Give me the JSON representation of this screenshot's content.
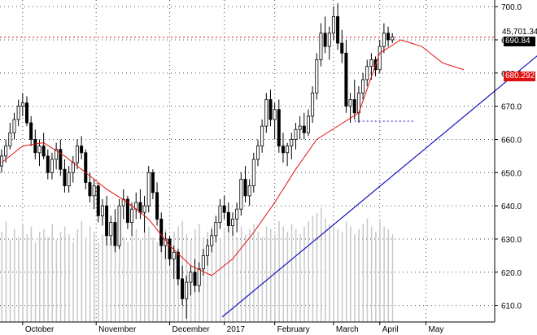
{
  "chart_data": {
    "type": "candlestick",
    "title": "",
    "xlabel": "",
    "ylabel": "",
    "ylim": [
      605,
      702
    ],
    "x_tick_labels": [
      "October",
      "November",
      "December",
      "2017",
      "February",
      "March",
      "April",
      "May"
    ],
    "y_tick_labels": [
      "610.0",
      "620.0",
      "630.0",
      "640.0",
      "650.0",
      "660.0",
      "670.0",
      "680.0",
      "690.0",
      "700.0"
    ],
    "y_ticks": [
      610,
      620,
      630,
      640,
      650,
      660,
      670,
      680,
      690,
      700
    ],
    "grid": true,
    "annotations": {
      "volume_label": "45,701.34",
      "last_price_label": "690.84",
      "last_price_value": 690.84,
      "moving_average_label": "680.292",
      "moving_average_value": 680.292,
      "horizontal_level_red": 690.8,
      "horizontal_level_blue": 665.5,
      "trendline_start": {
        "day": 105,
        "value": 606.5
      },
      "trendline_end": {
        "day": 287,
        "value": 702
      }
    },
    "colors": {
      "up_candle": "#ffffff",
      "down_candle": "#000000",
      "candle_outline": "#000000",
      "moving_average": "#e01010",
      "trendline": "#1010c0",
      "red_level": "#e01010",
      "blue_level": "#1010c0",
      "volume": "#c8c8c8",
      "price_tag": "#000000",
      "ma_tag": "#e01010"
    },
    "candles": [
      [
        652,
        657,
        650,
        655
      ],
      [
        655,
        660,
        653,
        658
      ],
      [
        658,
        665,
        657,
        662
      ],
      [
        662,
        668,
        660,
        666
      ],
      [
        666,
        672,
        664,
        670
      ],
      [
        670,
        674,
        667,
        671
      ],
      [
        671,
        673,
        664,
        665
      ],
      [
        665,
        667,
        658,
        660
      ],
      [
        660,
        663,
        654,
        656
      ],
      [
        656,
        660,
        652,
        658
      ],
      [
        658,
        662,
        654,
        655
      ],
      [
        655,
        657,
        648,
        650
      ],
      [
        650,
        656,
        648,
        654
      ],
      [
        654,
        659,
        651,
        657
      ],
      [
        657,
        660,
        649,
        651
      ],
      [
        651,
        654,
        644,
        646
      ],
      [
        646,
        652,
        644,
        650
      ],
      [
        650,
        655,
        647,
        653
      ],
      [
        653,
        660,
        651,
        658
      ],
      [
        658,
        661,
        654,
        656
      ],
      [
        656,
        657,
        645,
        647
      ],
      [
        647,
        650,
        641,
        643
      ],
      [
        643,
        648,
        639,
        646
      ],
      [
        646,
        647,
        635,
        637
      ],
      [
        637,
        642,
        634,
        640
      ],
      [
        640,
        643,
        628,
        631
      ],
      [
        631,
        637,
        628,
        635
      ],
      [
        635,
        639,
        626,
        628
      ],
      [
        628,
        642,
        627,
        640
      ],
      [
        640,
        645,
        636,
        642
      ],
      [
        642,
        643,
        633,
        635
      ],
      [
        635,
        641,
        631,
        639
      ],
      [
        639,
        644,
        636,
        641
      ],
      [
        641,
        645,
        636,
        638
      ],
      [
        638,
        643,
        632,
        640
      ],
      [
        640,
        652,
        638,
        650
      ],
      [
        650,
        651,
        642,
        644
      ],
      [
        644,
        647,
        634,
        636
      ],
      [
        636,
        638,
        626,
        628
      ],
      [
        628,
        632,
        624,
        630
      ],
      [
        630,
        631,
        622,
        624
      ],
      [
        624,
        628,
        618,
        626
      ],
      [
        626,
        627,
        616,
        618
      ],
      [
        618,
        622,
        610,
        612
      ],
      [
        612,
        619,
        606,
        617
      ],
      [
        617,
        622,
        613,
        620
      ],
      [
        620,
        624,
        614,
        616
      ],
      [
        616,
        623,
        614,
        621
      ],
      [
        621,
        627,
        619,
        625
      ],
      [
        625,
        630,
        622,
        628
      ],
      [
        628,
        633,
        626,
        631
      ],
      [
        631,
        637,
        629,
        635
      ],
      [
        635,
        642,
        633,
        640
      ],
      [
        640,
        643,
        636,
        638
      ],
      [
        638,
        641,
        632,
        634
      ],
      [
        634,
        638,
        631,
        636
      ],
      [
        636,
        641,
        632,
        639
      ],
      [
        639,
        650,
        637,
        648
      ],
      [
        648,
        652,
        641,
        643
      ],
      [
        643,
        648,
        640,
        646
      ],
      [
        646,
        656,
        644,
        654
      ],
      [
        654,
        660,
        652,
        658
      ],
      [
        658,
        666,
        656,
        664
      ],
      [
        664,
        674,
        662,
        672
      ],
      [
        672,
        675,
        664,
        666
      ],
      [
        666,
        671,
        660,
        669
      ],
      [
        669,
        672,
        656,
        658
      ],
      [
        658,
        662,
        653,
        656
      ],
      [
        656,
        659,
        652,
        658
      ],
      [
        658,
        662,
        654,
        660
      ],
      [
        660,
        665,
        657,
        663
      ],
      [
        663,
        667,
        660,
        664
      ],
      [
        664,
        668,
        660,
        662
      ],
      [
        662,
        669,
        661,
        667
      ],
      [
        667,
        676,
        665,
        674
      ],
      [
        674,
        686,
        672,
        684
      ],
      [
        684,
        695,
        682,
        692
      ],
      [
        692,
        697,
        686,
        688
      ],
      [
        688,
        694,
        684,
        692
      ],
      [
        692,
        700,
        690,
        697
      ],
      [
        697,
        701,
        687,
        689
      ],
      [
        689,
        693,
        683,
        686
      ],
      [
        686,
        690,
        668,
        670
      ],
      [
        670,
        674,
        665,
        672
      ],
      [
        672,
        678,
        666,
        668
      ],
      [
        668,
        676,
        665,
        674
      ],
      [
        674,
        680,
        672,
        678
      ],
      [
        678,
        684,
        676,
        682
      ],
      [
        682,
        686,
        678,
        684
      ],
      [
        684,
        685,
        679,
        681
      ],
      [
        681,
        690,
        680,
        688
      ],
      [
        688,
        695,
        686,
        692
      ],
      [
        692,
        694,
        688,
        690
      ],
      [
        690,
        692,
        689,
        690.84
      ]
    ],
    "candle_day_offsets": [
      0,
      2,
      4,
      6,
      8,
      10,
      12,
      14,
      16,
      18,
      20,
      22,
      24,
      26,
      28,
      30,
      32,
      34,
      36,
      38,
      40,
      42,
      44,
      46,
      48,
      50,
      52,
      54,
      56,
      58,
      60,
      62,
      64,
      66,
      68,
      70,
      72,
      74,
      76,
      78,
      80,
      82,
      84,
      86,
      88,
      90,
      92,
      94,
      96,
      98,
      100,
      102,
      104,
      106,
      108,
      110,
      112,
      114,
      116,
      118,
      120,
      122,
      124,
      126,
      128,
      130,
      132,
      134,
      136,
      138,
      140,
      142,
      144,
      146,
      148,
      150,
      152,
      154,
      156,
      158,
      160,
      162,
      164,
      166,
      168,
      170,
      172,
      174,
      176,
      178,
      180,
      182,
      184,
      186
    ],
    "x_tick_days": [
      10,
      45,
      80,
      106,
      130,
      158,
      180,
      202
    ],
    "day_range": [
      0,
      220
    ],
    "moving_average": [
      [
        0,
        653
      ],
      [
        10,
        658
      ],
      [
        20,
        659
      ],
      [
        30,
        655
      ],
      [
        40,
        650
      ],
      [
        50,
        645
      ],
      [
        60,
        641
      ],
      [
        70,
        636
      ],
      [
        80,
        628
      ],
      [
        90,
        622
      ],
      [
        100,
        619
      ],
      [
        110,
        624
      ],
      [
        120,
        632
      ],
      [
        130,
        641
      ],
      [
        140,
        651
      ],
      [
        150,
        660
      ],
      [
        160,
        664
      ],
      [
        170,
        668
      ],
      [
        180,
        686
      ],
      [
        190,
        690
      ],
      [
        200,
        688
      ],
      [
        210,
        683
      ],
      [
        220,
        681
      ]
    ],
    "volume": [
      34,
      38,
      31,
      35,
      32,
      37,
      33,
      36,
      30,
      34,
      35,
      32,
      37,
      31,
      34,
      36,
      33,
      30,
      35,
      38,
      32,
      36,
      34,
      30,
      33,
      35,
      31,
      36,
      34,
      32,
      30,
      33,
      35,
      31,
      34,
      36,
      32,
      30,
      33,
      35,
      31,
      34,
      36,
      38,
      33,
      31,
      35,
      37,
      32,
      34,
      36,
      33,
      31,
      35,
      38,
      34,
      32,
      36,
      33,
      35,
      37,
      34,
      32,
      36,
      35,
      33,
      38,
      36,
      34,
      37,
      35,
      33,
      36,
      38,
      40,
      41,
      43,
      39,
      37,
      36,
      35,
      34,
      38,
      36,
      33,
      35,
      37,
      39,
      36,
      34,
      38,
      36,
      35,
      33
    ]
  }
}
